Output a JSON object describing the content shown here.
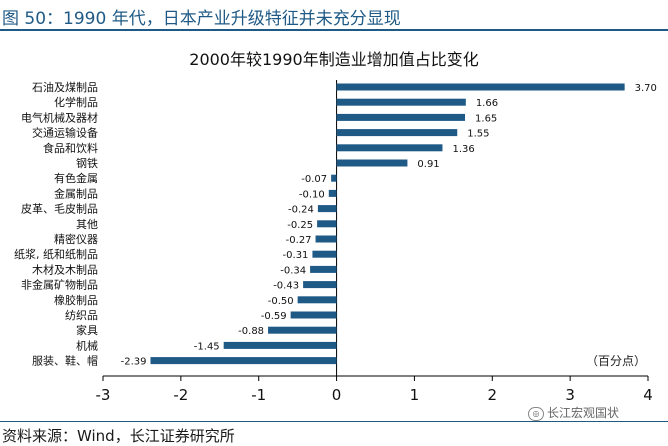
{
  "figure": {
    "label": "图 50：1990 年代，日本产业升级特征并未充分显现",
    "source": "资料来源：Wind，长江证券研究所",
    "watermark_text": "长江宏观国状",
    "watermark_icon": "wechat-icon"
  },
  "chart_data": {
    "type": "bar",
    "orientation": "horizontal",
    "title": "2000年较1990年制造业增加值占比变化",
    "unit_label": "（百分点）",
    "xlabel": "",
    "ylabel": "",
    "xlim": [
      -3,
      4
    ],
    "x_ticks": [
      "-3",
      "-2",
      "-1",
      "0",
      "1",
      "2",
      "3",
      "4"
    ],
    "grid": false,
    "bar_color": "#1f5a86",
    "categories": [
      "石油及煤制品",
      "化学制品",
      "电气机械及器材",
      "交通运输设备",
      "食品和饮料",
      "钢铁",
      "有色金属",
      "金属制品",
      "皮革、毛皮制品",
      "其他",
      "精密仪器",
      "纸浆, 纸和纸制品",
      "木材及木制品",
      "非金属矿物制品",
      "橡胶制品",
      "纺织品",
      "家具",
      "机械",
      "服装、鞋、帽"
    ],
    "values": [
      3.7,
      1.66,
      1.65,
      1.55,
      1.36,
      0.91,
      -0.07,
      -0.1,
      -0.24,
      -0.25,
      -0.27,
      -0.31,
      -0.34,
      -0.43,
      -0.5,
      -0.59,
      -0.88,
      -1.45,
      -2.39
    ],
    "value_labels": [
      "3.70",
      "1.66",
      "1.65",
      "1.55",
      "1.36",
      "0.91",
      "-0.07",
      "-0.10",
      "-0.24",
      "-0.25",
      "-0.27",
      "-0.31",
      "-0.34",
      "-0.43",
      "-0.50",
      "-0.59",
      "-0.88",
      "-1.45",
      "-2.39"
    ]
  }
}
